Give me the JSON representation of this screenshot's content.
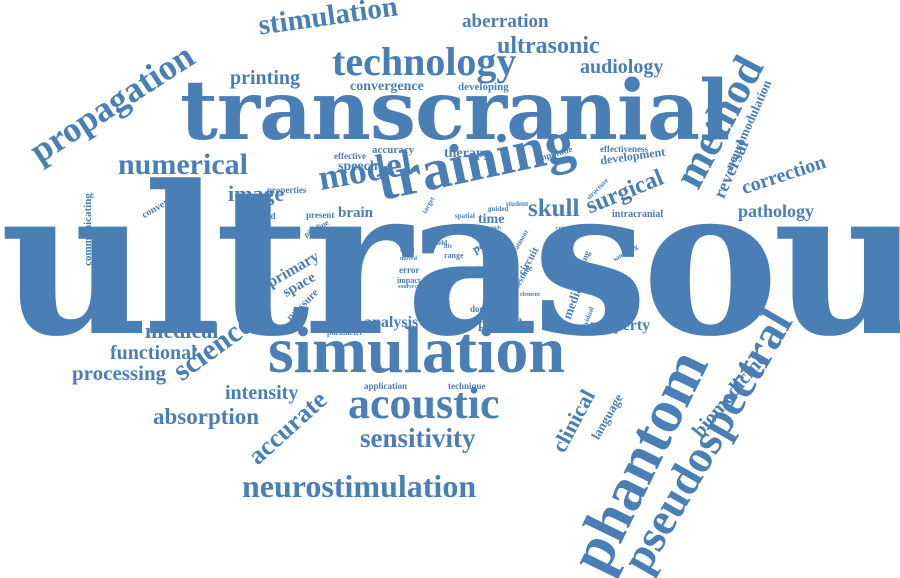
{
  "colors": {
    "word": "#4a7fb5",
    "background": "#ffffff"
  },
  "words": {
    "ultrasound": "ultrasound",
    "transcranial": "transcranial",
    "simulation_big": "simulation",
    "training": "training",
    "phantom": "phantom",
    "pseudospectral": "pseudospectral",
    "acoustic": "acoustic",
    "method": "method",
    "technology": "technology",
    "neurostimulation": "neurostimulation",
    "propagation": "propagation",
    "stimulation": "stimulation",
    "numerical": "numerical",
    "model": "model",
    "sensitivity": "sensitivity",
    "science": "science",
    "accurate": "accurate",
    "skull": "skull",
    "surgical": "surgical",
    "clinical": "clinical",
    "biomedicine": "biomedicine",
    "medical": "medical",
    "functional": "functional",
    "processing": "processing",
    "absorption": "absorption",
    "intensity": "intensity",
    "image": "image",
    "printing": "printing",
    "ultrasonic": "ultrasonic",
    "audiology": "audiology",
    "aberration": "aberration",
    "correction": "correction",
    "pathology": "pathology",
    "reversal": "reversal",
    "neuromodulation": "neuromodulation",
    "convergence": "convergence",
    "developing": "developing",
    "therapy": "therapy",
    "accuracy": "accuracy",
    "effective": "effective",
    "speech": "speech",
    "development": "development",
    "effectiveness": "effectiveness",
    "amplitude": "amplitude",
    "properties": "properties",
    "simulated": "simulated",
    "present": "present",
    "brain": "brain",
    "conversion": "conversion",
    "pipeline": "pipeline",
    "communicating": "communicating",
    "primary": "primary",
    "space": "space",
    "pressure": "pressure",
    "scheme": "scheme",
    "parameter": "parameter",
    "analysis": "analysis",
    "printed": "printed",
    "domain": "domain",
    "property": "property",
    "media": "media",
    "individual": "individual",
    "application": "application",
    "technique": "technique",
    "language": "language",
    "intracranial": "intracranial",
    "teaching": "teaching",
    "sampling": "sampling",
    "time": "time",
    "map": "map",
    "power": "power",
    "circuit": "circuit",
    "testing": "testing",
    "error": "error",
    "impact": "impact",
    "change": "change",
    "element": "element",
    "criterion": "criterion",
    "student": "student",
    "guided": "guided",
    "spatial": "spatial",
    "target": "target",
    "treatment": "treatment",
    "structure": "structure",
    "field": "field",
    "range": "range",
    "life": "life",
    "moved": "moved",
    "research": "research",
    "specific": "specific",
    "speed": "speed",
    "source": "source",
    "control": "control",
    "study": "study",
    "area": "area",
    "dose": "dose",
    "focus": "focus"
  }
}
